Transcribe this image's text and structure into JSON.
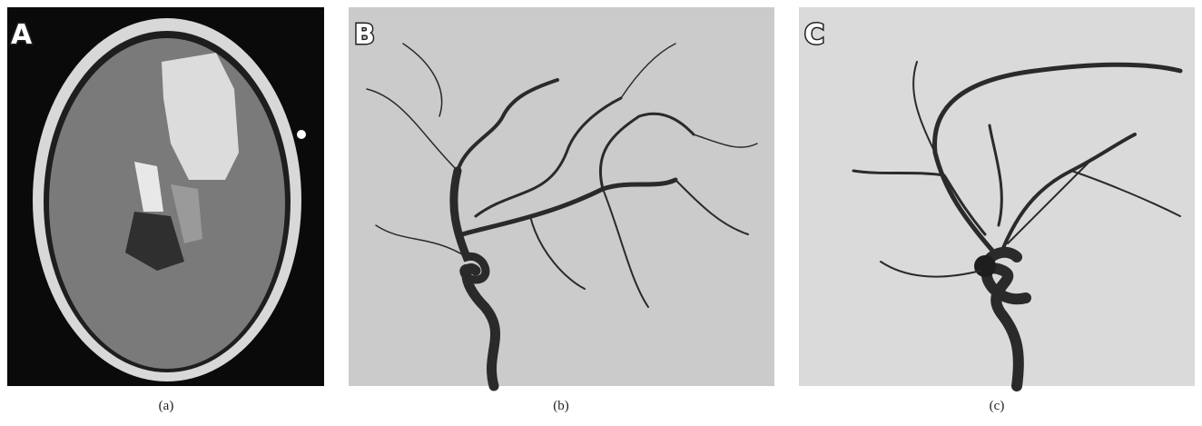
{
  "panels": [
    {
      "letter": "A",
      "caption": "(a)"
    },
    {
      "letter": "B",
      "caption": "(b)"
    },
    {
      "letter": "C",
      "caption": "(c)"
    }
  ]
}
